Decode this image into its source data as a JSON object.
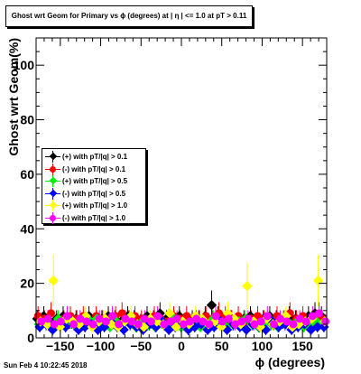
{
  "title": "Ghost wrt Geom for Primary vs ϕ (degrees) at | η | <= 1.0 at pT > 0.11",
  "datestamp": "Sun Feb  4 10:22:45 2018",
  "chart_data": {
    "type": "scatter",
    "title": "Ghost wrt Geom for Primary vs ϕ (degrees) at | η | <= 1.0 at pT > 0.11",
    "xlabel": "ϕ (degrees)",
    "ylabel": "Ghost wrt Geom(%)",
    "xlim": [
      -180,
      180
    ],
    "ylim": [
      0,
      110
    ],
    "xticks": [
      -150,
      -100,
      -50,
      0,
      50,
      100,
      150
    ],
    "yticks": [
      0,
      20,
      40,
      60,
      80,
      100
    ],
    "grid": false,
    "legend_position": "middle-left",
    "series": [
      {
        "name": "(+) with pT/|q| > 0.1",
        "marker": "diamond",
        "color": "#000000",
        "x": [
          -176,
          -168,
          -160,
          -152,
          -144,
          -136,
          -128,
          -120,
          -112,
          -104,
          -96,
          -88,
          -80,
          -72,
          -64,
          -56,
          -48,
          -40,
          -32,
          -24,
          -16,
          -8,
          0,
          8,
          16,
          24,
          32,
          40,
          48,
          56,
          64,
          72,
          80,
          88,
          96,
          104,
          112,
          120,
          128,
          136,
          144,
          152,
          160,
          168,
          176
        ],
        "y": [
          7,
          8,
          6,
          7,
          8,
          6,
          7,
          5,
          8,
          6,
          7,
          8,
          7,
          6,
          8,
          7,
          6,
          8,
          7,
          9,
          7,
          6,
          8,
          6,
          7,
          7,
          8,
          12,
          8,
          6,
          7,
          6,
          7,
          8,
          6,
          7,
          8,
          7,
          6,
          8,
          7,
          6,
          8,
          9,
          8
        ]
      },
      {
        "name": "(-) with pT/|q| > 0.1",
        "marker": "circle",
        "color": "#ff0000",
        "x": [
          -176,
          -168,
          -160,
          -152,
          -144,
          -136,
          -128,
          -120,
          -112,
          -104,
          -96,
          -88,
          -80,
          -72,
          -64,
          -56,
          -48,
          -40,
          -32,
          -24,
          -16,
          -8,
          0,
          8,
          16,
          24,
          32,
          40,
          48,
          56,
          64,
          72,
          80,
          88,
          96,
          104,
          112,
          120,
          128,
          136,
          144,
          152,
          160,
          168,
          176
        ],
        "y": [
          8,
          7,
          9,
          6,
          7,
          8,
          7,
          8,
          6,
          8,
          7,
          6,
          8,
          9,
          7,
          8,
          7,
          6,
          8,
          7,
          6,
          8,
          7,
          8,
          6,
          7,
          8,
          7,
          9,
          8,
          7,
          8,
          6,
          7,
          8,
          7,
          6,
          8,
          7,
          9,
          7,
          8,
          6,
          7,
          7
        ]
      },
      {
        "name": "(+) with pT/|q| > 0.5",
        "marker": "diamond",
        "color": "#00ee00",
        "x": [
          -176,
          -168,
          -160,
          -152,
          -144,
          -136,
          -128,
          -120,
          -112,
          -104,
          -96,
          -88,
          -80,
          -72,
          -64,
          -56,
          -48,
          -40,
          -32,
          -24,
          -16,
          -8,
          0,
          8,
          16,
          24,
          32,
          40,
          48,
          56,
          64,
          72,
          80,
          88,
          96,
          104,
          112,
          120,
          128,
          136,
          144,
          152,
          160,
          168,
          176
        ],
        "y": [
          5,
          6,
          4,
          7,
          5,
          6,
          4,
          5,
          6,
          7,
          5,
          4,
          6,
          5,
          7,
          4,
          6,
          5,
          4,
          6,
          5,
          7,
          4,
          5,
          6,
          4,
          5,
          7,
          6,
          4,
          5,
          6,
          7,
          5,
          4,
          6,
          5,
          4,
          7,
          5,
          6,
          4,
          5,
          6,
          5
        ]
      },
      {
        "name": "(-) with pT/|q| > 0.5",
        "marker": "diamond",
        "color": "#0000ff",
        "x": [
          -176,
          -168,
          -160,
          -152,
          -144,
          -136,
          -128,
          -120,
          -112,
          -104,
          -96,
          -88,
          -80,
          -72,
          -64,
          -56,
          -48,
          -40,
          -32,
          -24,
          -16,
          -8,
          0,
          8,
          16,
          24,
          32,
          40,
          48,
          56,
          64,
          72,
          80,
          88,
          96,
          104,
          112,
          120,
          128,
          136,
          144,
          152,
          160,
          168,
          176
        ],
        "y": [
          4,
          5,
          3,
          5,
          4,
          6,
          3,
          4,
          5,
          3,
          4,
          6,
          4,
          3,
          5,
          4,
          3,
          5,
          4,
          6,
          3,
          4,
          5,
          3,
          4,
          5,
          3,
          4,
          6,
          3,
          5,
          4,
          3,
          5,
          4,
          3,
          6,
          4,
          5,
          3,
          4,
          5,
          3,
          4,
          4
        ]
      },
      {
        "name": "(+) with pT/|q| > 1.0",
        "marker": "diamond",
        "color": "#ffff00",
        "x": [
          -176,
          -168,
          -160,
          -152,
          -144,
          -136,
          -128,
          -120,
          -112,
          -104,
          -96,
          -88,
          -80,
          -72,
          -64,
          -56,
          -48,
          -40,
          -32,
          -24,
          -16,
          -8,
          0,
          8,
          16,
          24,
          32,
          40,
          48,
          56,
          64,
          72,
          80,
          88,
          96,
          104,
          112,
          120,
          128,
          136,
          144,
          152,
          160,
          168,
          176
        ],
        "y": [
          6,
          5,
          21,
          4,
          7,
          6,
          5,
          8,
          4,
          6,
          7,
          5,
          4,
          6,
          8,
          5,
          4,
          7,
          6,
          5,
          9,
          4,
          6,
          5,
          8,
          7,
          5,
          6,
          4,
          9,
          7,
          5,
          19,
          6,
          4,
          7,
          5,
          6,
          8,
          4,
          5,
          6,
          7,
          21,
          6
        ]
      },
      {
        "name": "(-) with pT/|q| > 1.0",
        "marker": "circle",
        "color": "#ff00ff",
        "x": [
          -176,
          -168,
          -160,
          -152,
          -144,
          -136,
          -128,
          -120,
          -112,
          -104,
          -96,
          -88,
          -80,
          -72,
          -64,
          -56,
          -48,
          -40,
          -32,
          -24,
          -16,
          -8,
          0,
          8,
          16,
          24,
          32,
          40,
          48,
          56,
          64,
          72,
          80,
          88,
          96,
          104,
          112,
          120,
          128,
          136,
          144,
          152,
          160,
          168,
          176
        ],
        "y": [
          6,
          7,
          5,
          6,
          8,
          5,
          7,
          6,
          5,
          7,
          6,
          8,
          5,
          7,
          6,
          5,
          7,
          6,
          8,
          5,
          6,
          7,
          5,
          6,
          7,
          6,
          5,
          8,
          6,
          7,
          5,
          6,
          7,
          5,
          6,
          8,
          5,
          7,
          6,
          5,
          7,
          6,
          8,
          9,
          6
        ]
      }
    ]
  }
}
